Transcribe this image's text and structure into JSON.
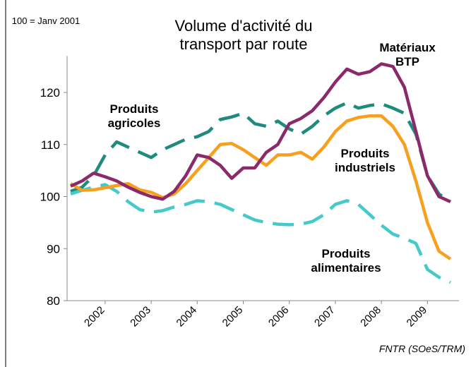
{
  "chart_data": {
    "type": "line",
    "title": "Volume d'activité du transport par route",
    "y_axis_label": "100 = Janv 2001",
    "source": "FNTR (SOeS/TRM)",
    "categories": [
      null,
      null,
      null,
      "2002",
      null,
      null,
      null,
      "2003",
      null,
      null,
      null,
      "2004",
      null,
      null,
      null,
      "2005",
      null,
      null,
      null,
      "2006",
      null,
      null,
      null,
      "2007",
      null,
      null,
      null,
      "2008",
      null,
      null,
      null,
      "2009",
      null,
      null
    ],
    "ylim": [
      80,
      127
    ],
    "yticks": [
      80,
      90,
      100,
      110,
      120
    ],
    "series": [
      {
        "name": "Produits agricoles",
        "color": "#1f8a7e",
        "dash": true,
        "values": [
          101,
          101.8,
          104,
          108,
          110.5,
          109.5,
          108.5,
          107.5,
          109,
          110,
          111,
          111.5,
          112.5,
          114.8,
          115.3,
          116,
          114,
          113.5,
          114.5,
          113,
          112,
          113.5,
          115.5,
          117,
          118,
          117,
          117.5,
          117.8,
          117,
          116,
          112,
          104,
          100.5,
          99
        ]
      },
      {
        "name": "Produits alimentaires",
        "color": "#45c9c9",
        "dash": true,
        "values": [
          100.5,
          101.2,
          101.8,
          102.3,
          101,
          99,
          97.5,
          97,
          97.3,
          98,
          98.5,
          99.2,
          99,
          98.5,
          97.5,
          96.5,
          95.5,
          95,
          94.7,
          94.6,
          94.7,
          95.2,
          96.5,
          98.5,
          99.2,
          98.5,
          96.5,
          94.5,
          92.8,
          92,
          91,
          86,
          84.5,
          83.5
        ]
      },
      {
        "name": "Produits industriels",
        "color": "#f7a01e",
        "dash": false,
        "values": [
          102.5,
          101.2,
          101.3,
          101.7,
          102.1,
          102.5,
          101.3,
          100.8,
          99.8,
          100.5,
          102.5,
          105,
          107.5,
          110,
          110.2,
          109,
          107.5,
          106,
          108,
          108,
          108.5,
          107.2,
          109.5,
          112.5,
          114.5,
          115.2,
          115.5,
          115.5,
          113.5,
          110,
          103,
          95,
          89.5,
          88
        ]
      },
      {
        "name": "Matériaux BTP",
        "color": "#8b2a6b",
        "dash": false,
        "values": [
          102,
          103,
          104.5,
          103.8,
          103,
          101.8,
          100.8,
          100,
          99.5,
          101,
          104,
          108,
          107.5,
          106,
          103.5,
          105.5,
          105.5,
          108.5,
          110,
          114,
          115,
          116.5,
          119,
          122,
          124.5,
          123.5,
          124,
          125.5,
          125,
          121,
          112.5,
          104,
          100,
          99
        ]
      }
    ]
  }
}
